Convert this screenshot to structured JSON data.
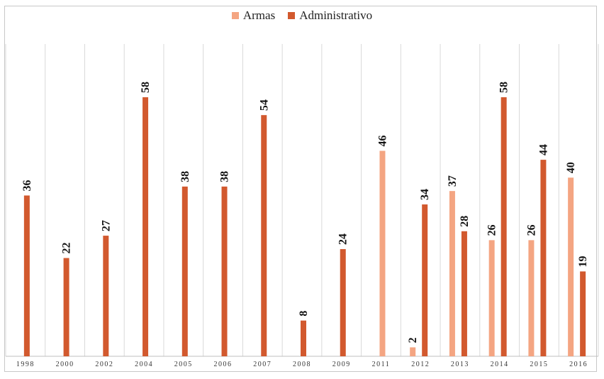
{
  "chart_data": {
    "type": "bar",
    "title": "",
    "xlabel": "",
    "ylabel": "",
    "ylim": [
      0,
      58
    ],
    "grid": "vertical separators",
    "legend_position": "top-center",
    "categories": [
      "1998",
      "2000",
      "2002",
      "2004",
      "2005",
      "2006",
      "2007",
      "2008",
      "2009",
      "2011",
      "2012",
      "2013",
      "2014",
      "2015",
      "2016"
    ],
    "series": [
      {
        "name": "Armas",
        "color": "#f4a582",
        "values": [
          null,
          null,
          null,
          null,
          null,
          null,
          null,
          null,
          null,
          46,
          2,
          37,
          26,
          26,
          40
        ]
      },
      {
        "name": "Administrativo",
        "color": "#d2592e",
        "values": [
          36,
          22,
          27,
          58,
          38,
          38,
          54,
          8,
          24,
          null,
          34,
          28,
          58,
          44,
          19
        ]
      }
    ]
  }
}
